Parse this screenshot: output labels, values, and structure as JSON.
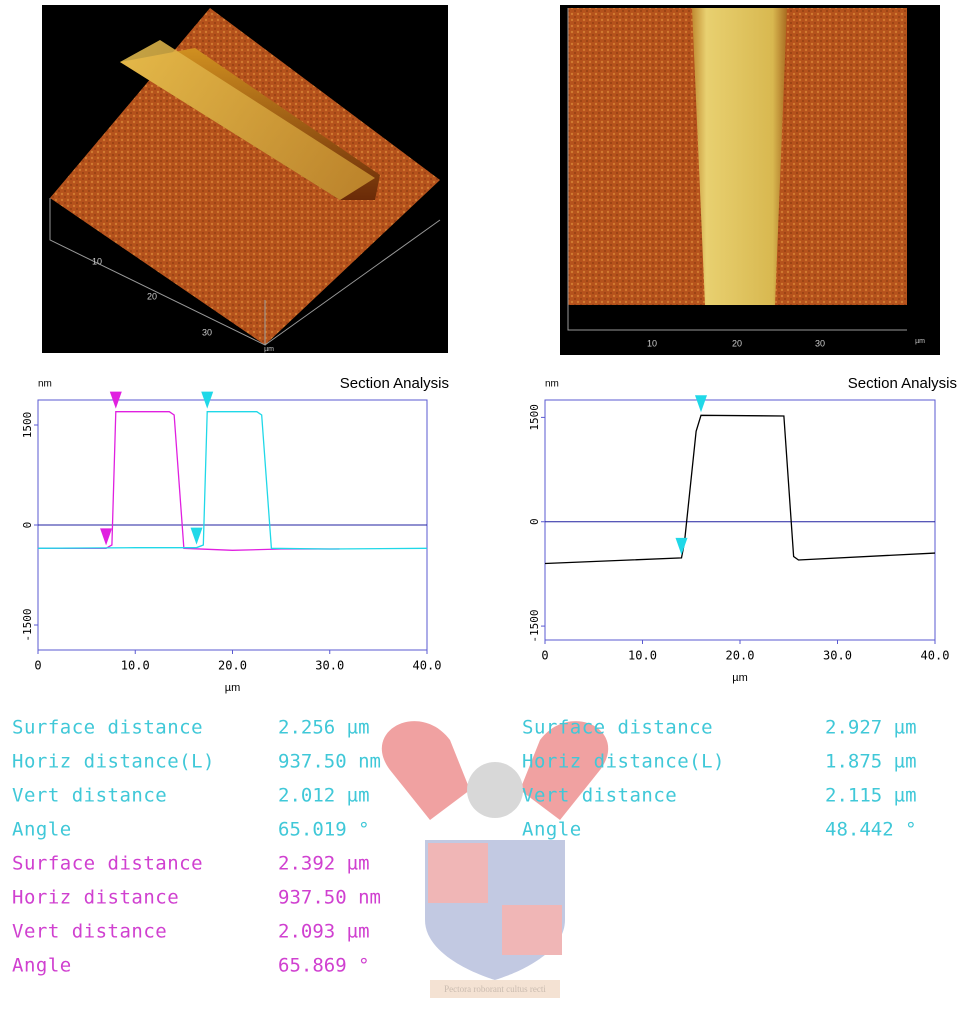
{
  "images": [
    {
      "tick_labels": [
        "10",
        "20",
        "30"
      ],
      "unit": "µm"
    },
    {
      "tick_labels": [
        "10",
        "20",
        "30"
      ],
      "unit": "µm"
    }
  ],
  "chart_data": [
    {
      "type": "line",
      "title": "Section Analysis",
      "y_unit": "nm",
      "x_label": "µm",
      "xlim": [
        0,
        40
      ],
      "xticks": [
        0,
        {
          "value": 10,
          "label": "10.0"
        },
        {
          "value": 20,
          "label": "20.0"
        },
        {
          "value": 30,
          "label": "30.0"
        },
        {
          "value": 40,
          "label": "40.0"
        }
      ],
      "ylim": [
        -1875,
        1875
      ],
      "yticks": [
        1500,
        0,
        -1500
      ],
      "series": [
        {
          "color": "#e020e0",
          "x": [
            0,
            7,
            7.6,
            8,
            13.5,
            14,
            15,
            20,
            25,
            31
          ],
          "values": [
            -350,
            -350,
            -300,
            1700,
            1700,
            1650,
            -350,
            -380,
            -360,
            -360
          ]
        },
        {
          "color": "#20d8e8",
          "x": [
            0,
            10,
            16.3,
            17,
            17.4,
            22.5,
            23,
            24,
            30,
            40
          ],
          "values": [
            -350,
            -340,
            -340,
            -300,
            1700,
            1700,
            1650,
            -350,
            -360,
            -350
          ]
        }
      ],
      "markers": [
        {
          "x": 8,
          "y": 1700,
          "color": "#e020e0"
        },
        {
          "x": 7,
          "y": -350,
          "color": "#e020e0"
        },
        {
          "x": 17.4,
          "y": 1700,
          "color": "#20d8e8"
        },
        {
          "x": 16.3,
          "y": -340,
          "color": "#20d8e8"
        }
      ]
    },
    {
      "type": "line",
      "title": "Section Analysis",
      "y_unit": "nm",
      "x_label": "µm",
      "xlim": [
        0,
        40
      ],
      "xticks": [
        0,
        {
          "value": 10,
          "label": "10.0"
        },
        {
          "value": 20,
          "label": "20.0"
        },
        {
          "value": 30,
          "label": "30.0"
        },
        {
          "value": 40,
          "label": "40.0"
        }
      ],
      "ylim": [
        -1700,
        1750
      ],
      "yticks": [
        1500,
        0,
        -1500
      ],
      "series": [
        {
          "color": "#000000",
          "x": [
            0,
            14,
            14.3,
            15.5,
            16,
            24.5,
            25.5,
            26,
            40
          ],
          "values": [
            -600,
            -520,
            -300,
            1300,
            1530,
            1520,
            -500,
            -550,
            -450
          ]
        }
      ],
      "markers": [
        {
          "x": 16,
          "y": 1530,
          "color": "#20d8e8"
        },
        {
          "x": 14,
          "y": -520,
          "color": "#20d8e8"
        }
      ]
    }
  ],
  "measurements": {
    "left": [
      {
        "label": "Surface distance",
        "value": "2.256 µm",
        "color": "#40c8d8"
      },
      {
        "label": "Horiz distance(L)",
        "value": "937.50 nm",
        "color": "#40c8d8"
      },
      {
        "label": "Vert distance",
        "value": "2.012 µm",
        "color": "#40c8d8"
      },
      {
        "label": "Angle",
        "value": "65.019 °",
        "color": "#40c8d8"
      },
      {
        "label": "Surface distance",
        "value": "2.392 µm",
        "color": "#d040d0"
      },
      {
        "label": "Horiz distance",
        "value": "937.50 nm",
        "color": "#d040d0"
      },
      {
        "label": "Vert distance",
        "value": "2.093 µm",
        "color": "#d040d0"
      },
      {
        "label": "Angle",
        "value": "65.869 °",
        "color": "#d040d0"
      }
    ],
    "right": [
      {
        "label": "Surface distance",
        "value": "2.927 µm",
        "color": "#40c8d8"
      },
      {
        "label": "Horiz distance(L)",
        "value": "1.875 µm",
        "color": "#40c8d8"
      },
      {
        "label": "Vert distance",
        "value": "2.115 µm",
        "color": "#40c8d8"
      },
      {
        "label": "Angle",
        "value": "48.442 °",
        "color": "#40c8d8"
      }
    ]
  },
  "watermark": "Pectora roborant cultus recti"
}
